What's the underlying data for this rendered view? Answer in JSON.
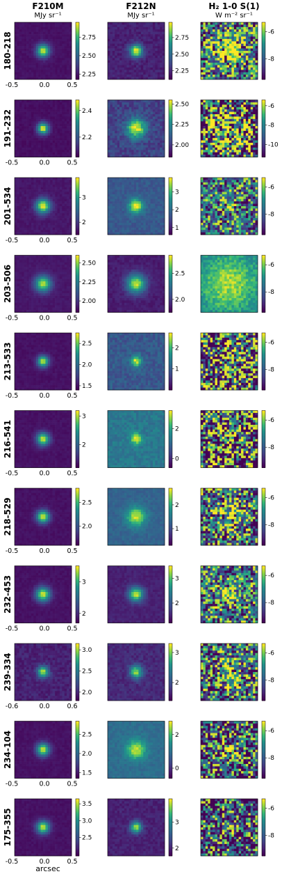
{
  "figure": {
    "columns": [
      {
        "title": "F210M",
        "unit": "MJy sr⁻¹"
      },
      {
        "title": "F212N",
        "unit": "MJy sr⁻¹"
      },
      {
        "title": "H₂ 1-0 S(1)",
        "unit": "W m⁻² sr⁻¹"
      }
    ],
    "xlabel": "arcsec"
  },
  "chart_data": {
    "type": "heatmap",
    "description_of_panels": "Grid of 11 sources x 3 image panels with colorbars",
    "x_ticks_default": [
      "-0.5",
      "0.0",
      "0.5"
    ],
    "x_ticks_row_239_334": [
      "-0.6",
      "0.0",
      "0.6"
    ],
    "colormap": "viridis",
    "rows": [
      {
        "label": "180-218",
        "panels": [
          {
            "ticks": [
              "2.25",
              "2.50",
              "2.75"
            ],
            "range": [
              2.18,
              2.95
            ],
            "base": 0.06,
            "peak": 0.9,
            "sigma": 0.08,
            "noise": 0.05
          },
          {
            "ticks": [
              "2.25",
              "2.50",
              "2.75"
            ],
            "range": [
              2.12,
              2.98
            ],
            "base": 0.12,
            "peak": 0.9,
            "sigma": 0.08,
            "noise": 0.12
          },
          {
            "ticks": [
              "-6",
              "-8"
            ],
            "range": [
              -9.5,
              -5.3
            ],
            "base": 0.45,
            "peak": 0.65,
            "sigma": 0.2,
            "noise": 0.5
          }
        ]
      },
      {
        "label": "191-232",
        "panels": [
          {
            "ticks": [
              "2.2",
              "2.4"
            ],
            "range": [
              2.05,
              2.48
            ],
            "base": 0.05,
            "peak": 0.95,
            "sigma": 0.07,
            "noise": 0.05
          },
          {
            "ticks": [
              "2.00",
              "2.25",
              "2.50"
            ],
            "range": [
              1.85,
              2.55
            ],
            "base": 0.25,
            "peak": 0.75,
            "sigma": 0.12,
            "noise": 0.2
          },
          {
            "ticks": [
              "-6",
              "-8",
              "-10"
            ],
            "range": [
              -11.3,
              -5.4
            ],
            "base": 0.4,
            "peak": 0.55,
            "sigma": 0.25,
            "noise": 0.7
          }
        ]
      },
      {
        "label": "201-534",
        "panels": [
          {
            "ticks": [
              "2",
              "3"
            ],
            "range": [
              1.5,
              3.8
            ],
            "base": 0.08,
            "peak": 0.92,
            "sigma": 0.09,
            "noise": 0.06
          },
          {
            "ticks": [
              "1",
              "2",
              "3"
            ],
            "range": [
              0.6,
              3.8
            ],
            "base": 0.35,
            "peak": 0.65,
            "sigma": 0.09,
            "noise": 0.12
          },
          {
            "ticks": [
              "-6",
              "-8"
            ],
            "range": [
              -9.5,
              -5.3
            ],
            "base": 0.5,
            "peak": 0.45,
            "sigma": 0.08,
            "noise": 0.45
          }
        ]
      },
      {
        "label": "203-506",
        "panels": [
          {
            "ticks": [
              "2.00",
              "2.25",
              "2.50"
            ],
            "range": [
              1.85,
              2.6
            ],
            "base": 0.08,
            "peak": 0.85,
            "sigma": 0.1,
            "noise": 0.05
          },
          {
            "ticks": [
              "2.0",
              "2.5"
            ],
            "range": [
              1.75,
              2.85
            ],
            "base": 0.1,
            "peak": 0.85,
            "sigma": 0.12,
            "noise": 0.08
          },
          {
            "ticks": [
              "-6",
              "-8"
            ],
            "range": [
              -9.5,
              -5.3
            ],
            "base": 0.55,
            "peak": 0.35,
            "sigma": 0.35,
            "noise": 0.2
          }
        ]
      },
      {
        "label": "213-533",
        "panels": [
          {
            "ticks": [
              "1.5",
              "2.0",
              "2.5"
            ],
            "range": [
              1.4,
              2.75
            ],
            "base": 0.06,
            "peak": 0.9,
            "sigma": 0.07,
            "noise": 0.05
          },
          {
            "ticks": [
              "1",
              "2"
            ],
            "range": [
              0.0,
              2.7
            ],
            "base": 0.35,
            "peak": 0.6,
            "sigma": 0.07,
            "noise": 0.18
          },
          {
            "ticks": [
              "-6",
              "-8"
            ],
            "range": [
              -9.5,
              -5.3
            ],
            "base": 0.45,
            "peak": 0.5,
            "sigma": 0.1,
            "noise": 0.7
          }
        ]
      },
      {
        "label": "216-541",
        "panels": [
          {
            "ticks": [
              "2",
              "3"
            ],
            "range": [
              1.2,
              3.2
            ],
            "base": 0.06,
            "peak": 0.9,
            "sigma": 0.08,
            "noise": 0.05
          },
          {
            "ticks": [
              "0",
              "2"
            ],
            "range": [
              -0.6,
              3.2
            ],
            "base": 0.5,
            "peak": 0.45,
            "sigma": 0.07,
            "noise": 0.15
          },
          {
            "ticks": [
              "-6",
              "-8"
            ],
            "range": [
              -9.5,
              -5.3
            ],
            "base": 0.4,
            "peak": 0.55,
            "sigma": 0.06,
            "noise": 0.75
          }
        ]
      },
      {
        "label": "218-529",
        "panels": [
          {
            "ticks": [
              "2.0",
              "2.5"
            ],
            "range": [
              1.6,
              2.8
            ],
            "base": 0.06,
            "peak": 0.92,
            "sigma": 0.08,
            "noise": 0.05
          },
          {
            "ticks": [
              "1",
              "2"
            ],
            "range": [
              0.3,
              2.7
            ],
            "base": 0.4,
            "peak": 0.55,
            "sigma": 0.12,
            "noise": 0.1
          },
          {
            "ticks": [
              "-6",
              "-8"
            ],
            "range": [
              -9.5,
              -5.3
            ],
            "base": 0.45,
            "peak": 0.4,
            "sigma": 0.2,
            "noise": 0.55
          }
        ]
      },
      {
        "label": "232-453",
        "panels": [
          {
            "ticks": [
              "2",
              "3"
            ],
            "range": [
              1.7,
              3.5
            ],
            "base": 0.06,
            "peak": 0.9,
            "sigma": 0.09,
            "noise": 0.05
          },
          {
            "ticks": [
              "2",
              "3"
            ],
            "range": [
              1.2,
              3.5
            ],
            "base": 0.12,
            "peak": 0.85,
            "sigma": 0.09,
            "noise": 0.08
          },
          {
            "ticks": [
              "-6",
              "-8"
            ],
            "range": [
              -9.5,
              -5.3
            ],
            "base": 0.5,
            "peak": 0.45,
            "sigma": 0.1,
            "noise": 0.5
          }
        ]
      },
      {
        "label": "239-334",
        "panels": [
          {
            "ticks": [
              "2.0",
              "2.5",
              "3.0"
            ],
            "range": [
              1.8,
              3.15
            ],
            "base": 0.12,
            "peak": 0.82,
            "sigma": 0.07,
            "noise": 0.12
          },
          {
            "ticks": [
              "2",
              "3"
            ],
            "range": [
              1.4,
              3.3
            ],
            "base": 0.15,
            "peak": 0.75,
            "sigma": 0.08,
            "noise": 0.12
          },
          {
            "ticks": [
              "-6",
              "-8"
            ],
            "range": [
              -9.5,
              -5.3
            ],
            "base": 0.45,
            "peak": 0.5,
            "sigma": 0.15,
            "noise": 0.55
          }
        ]
      },
      {
        "label": "234-104",
        "panels": [
          {
            "ticks": [
              "1.5",
              "2.0",
              "2.5"
            ],
            "range": [
              1.35,
              2.85
            ],
            "base": 0.06,
            "peak": 0.9,
            "sigma": 0.08,
            "noise": 0.05
          },
          {
            "ticks": [
              "0",
              "2"
            ],
            "range": [
              -0.6,
              2.8
            ],
            "base": 0.45,
            "peak": 0.5,
            "sigma": 0.12,
            "noise": 0.1
          },
          {
            "ticks": [
              "-6",
              "-8"
            ],
            "range": [
              -9.5,
              -5.3
            ],
            "base": 0.3,
            "peak": 0.55,
            "sigma": 0.12,
            "noise": 0.6
          }
        ]
      },
      {
        "label": "175-355",
        "panels": [
          {
            "ticks": [
              "2.5",
              "3.0",
              "3.5"
            ],
            "range": [
              1.95,
              3.65
            ],
            "base": 0.06,
            "peak": 0.9,
            "sigma": 0.08,
            "noise": 0.05
          },
          {
            "ticks": [
              "2",
              "3"
            ],
            "range": [
              1.7,
              3.9
            ],
            "base": 0.12,
            "peak": 0.8,
            "sigma": 0.07,
            "noise": 0.1
          },
          {
            "ticks": [
              "-6",
              "-8"
            ],
            "range": [
              -9.5,
              -5.3
            ],
            "base": 0.3,
            "peak": 0.6,
            "sigma": 0.08,
            "noise": 0.6
          }
        ]
      }
    ]
  }
}
